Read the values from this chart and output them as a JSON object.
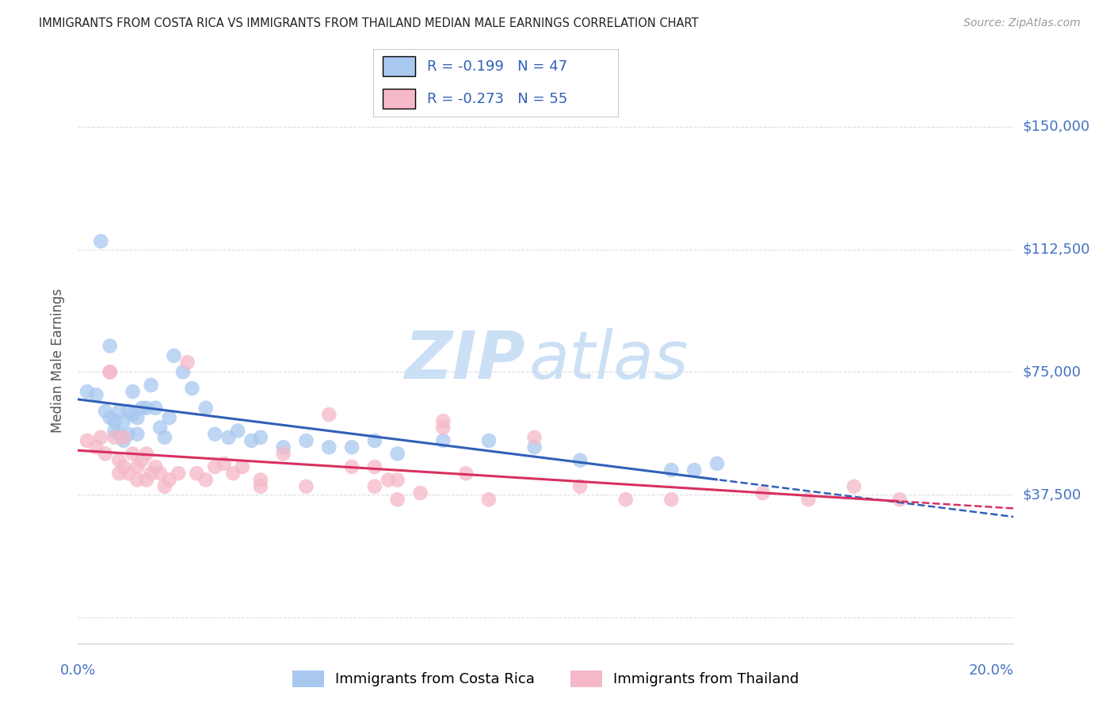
{
  "title": "IMMIGRANTS FROM COSTA RICA VS IMMIGRANTS FROM THAILAND MEDIAN MALE EARNINGS CORRELATION CHART",
  "source": "Source: ZipAtlas.com",
  "ylabel": "Median Male Earnings",
  "xlim": [
    0.0,
    0.205
  ],
  "ylim": [
    -8000,
    165000
  ],
  "yticks": [
    0,
    37500,
    75000,
    112500,
    150000
  ],
  "ytick_labels": [
    "",
    "$37,500",
    "$75,000",
    "$112,500",
    "$150,000"
  ],
  "xticks": [
    0.0,
    0.05,
    0.1,
    0.15,
    0.2
  ],
  "xtick_labels": [
    "0.0%",
    "",
    "",
    "",
    "20.0%"
  ],
  "blue_scatter_color": "#a8c8f0",
  "pink_scatter_color": "#f5b8c8",
  "blue_line_color": "#3060b8",
  "pink_line_color": "#d83060",
  "legend_text_color": "#3060b8",
  "watermark_zip_color": "#cce0f5",
  "watermark_atlas_color": "#cce0f5",
  "background_color": "#ffffff",
  "grid_color": "#dddddd",
  "title_color": "#222222",
  "ylabel_color": "#555555",
  "right_label_color": "#4472c4",
  "legend_border_color": "#cccccc",
  "cr_x": [
    0.002,
    0.004,
    0.005,
    0.006,
    0.007,
    0.007,
    0.008,
    0.008,
    0.009,
    0.009,
    0.01,
    0.01,
    0.011,
    0.011,
    0.012,
    0.012,
    0.013,
    0.013,
    0.014,
    0.015,
    0.016,
    0.017,
    0.018,
    0.019,
    0.02,
    0.021,
    0.023,
    0.025,
    0.028,
    0.03,
    0.033,
    0.035,
    0.038,
    0.04,
    0.045,
    0.05,
    0.055,
    0.06,
    0.065,
    0.07,
    0.08,
    0.09,
    0.1,
    0.11,
    0.13,
    0.135,
    0.14
  ],
  "cr_y": [
    69000,
    68000,
    115000,
    63000,
    83000,
    61000,
    60000,
    57000,
    56000,
    63000,
    54000,
    60000,
    56000,
    63000,
    69000,
    62000,
    61000,
    56000,
    64000,
    64000,
    71000,
    64000,
    58000,
    55000,
    61000,
    80000,
    75000,
    70000,
    64000,
    56000,
    55000,
    57000,
    54000,
    55000,
    52000,
    54000,
    52000,
    52000,
    54000,
    50000,
    54000,
    54000,
    52000,
    48000,
    45000,
    45000,
    47000
  ],
  "th_x": [
    0.002,
    0.004,
    0.005,
    0.006,
    0.007,
    0.007,
    0.008,
    0.009,
    0.009,
    0.01,
    0.01,
    0.011,
    0.012,
    0.013,
    0.013,
    0.014,
    0.015,
    0.015,
    0.016,
    0.017,
    0.018,
    0.019,
    0.02,
    0.022,
    0.024,
    0.026,
    0.028,
    0.03,
    0.032,
    0.034,
    0.036,
    0.04,
    0.045,
    0.05,
    0.055,
    0.06,
    0.065,
    0.07,
    0.08,
    0.09,
    0.1,
    0.11,
    0.12,
    0.13,
    0.15,
    0.16,
    0.17,
    0.18,
    0.068,
    0.07,
    0.04,
    0.085,
    0.065,
    0.08,
    0.075
  ],
  "th_y": [
    54000,
    52000,
    55000,
    50000,
    75000,
    75000,
    55000,
    48000,
    44000,
    55000,
    46000,
    44000,
    50000,
    46000,
    42000,
    48000,
    42000,
    50000,
    44000,
    46000,
    44000,
    40000,
    42000,
    44000,
    78000,
    44000,
    42000,
    46000,
    47000,
    44000,
    46000,
    40000,
    50000,
    40000,
    62000,
    46000,
    40000,
    42000,
    58000,
    36000,
    55000,
    40000,
    36000,
    36000,
    38000,
    36000,
    40000,
    36000,
    42000,
    36000,
    42000,
    44000,
    46000,
    60000,
    38000
  ]
}
